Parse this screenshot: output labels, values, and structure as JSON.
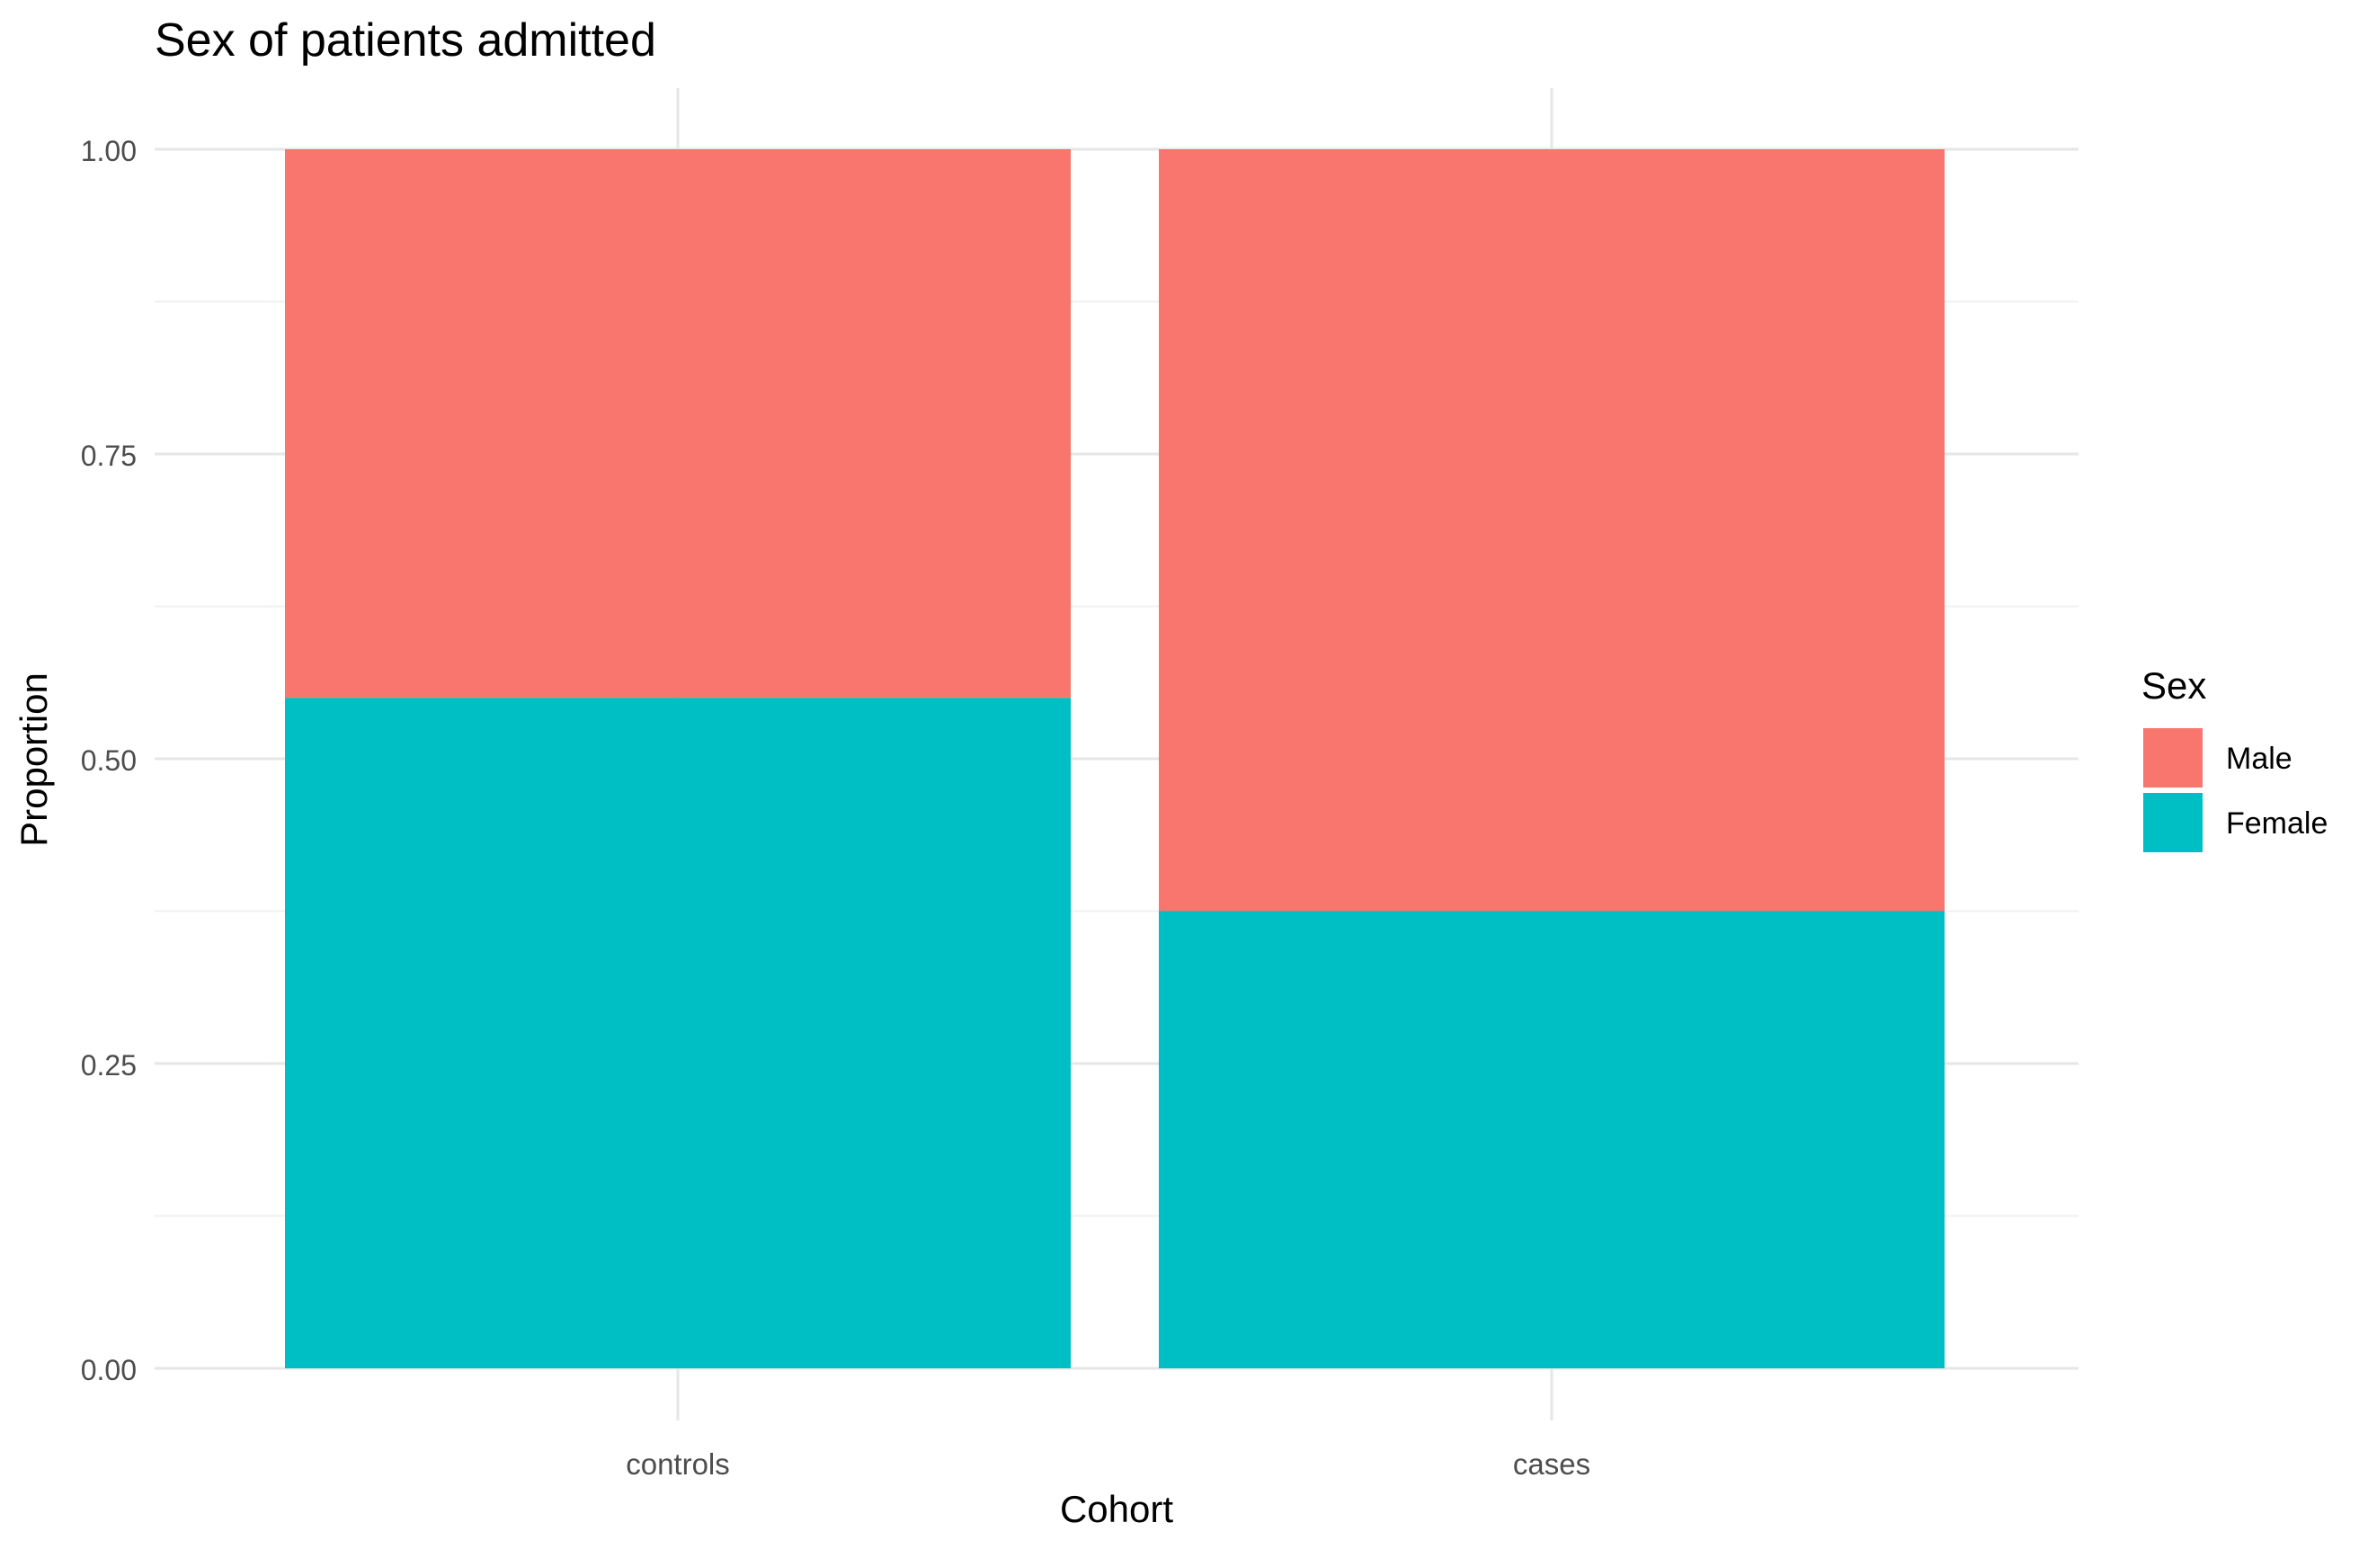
{
  "chart_data": {
    "type": "bar",
    "stacked": true,
    "title": "Sex of patients admitted",
    "xlabel": "Cohort",
    "ylabel": "Proportion",
    "categories": [
      "controls",
      "cases"
    ],
    "series": [
      {
        "name": "Male",
        "values": [
          0.45,
          0.625
        ],
        "color": "#F8766D"
      },
      {
        "name": "Female",
        "values": [
          0.55,
          0.375
        ],
        "color": "#00BFC4"
      }
    ],
    "ylim": [
      0,
      1
    ],
    "yticks": [
      "0.00",
      "0.25",
      "0.50",
      "0.75",
      "1.00"
    ],
    "grid": true,
    "legend": {
      "title": "Sex",
      "position": "right",
      "entries": [
        "Male",
        "Female"
      ]
    }
  }
}
